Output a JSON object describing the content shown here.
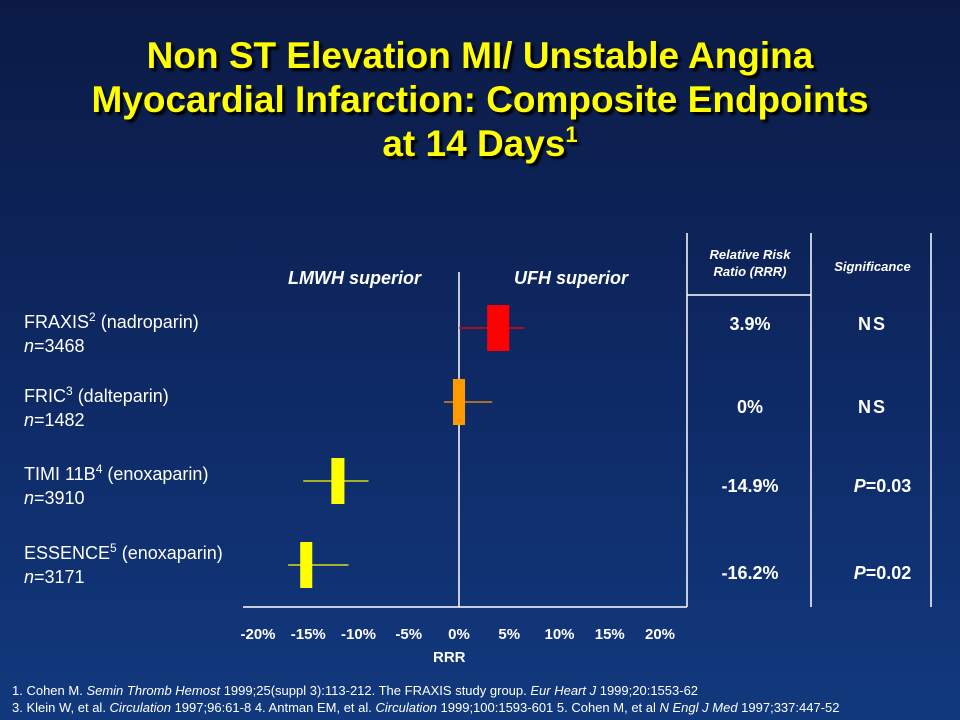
{
  "title": {
    "line1": "Non ST Elevation MI/ Unstable Angina",
    "line2": "Myocardial Infarction: Composite Endpoints",
    "line3": "at 14 Days",
    "line3_sup": "1"
  },
  "chart_data": {
    "type": "forest",
    "xlabel": "RRR",
    "xlim": [
      -20,
      20
    ],
    "xticks": [
      "-20%",
      "-15%",
      "-10%",
      "-5%",
      "0%",
      "5%",
      "10%",
      "15%",
      "20%"
    ],
    "left_label": "LMWH superior",
    "right_label": "UFH superior",
    "trials": [
      {
        "name": "FRAXIS",
        "ref": "2",
        "drug": " (nadroparin)",
        "n_prefix": "n",
        "n_value": "=3468",
        "rrr": 3.9,
        "box_low": 2.8,
        "box_high": 5.0,
        "line_low": 0.0,
        "line_high": 6.5,
        "color": "#ff0000",
        "rrr_label": "3.9%",
        "sig_prefix": "",
        "sig_value": "NS"
      },
      {
        "name": "FRIC",
        "ref": "3",
        "drug": " (dalteparin)",
        "n_prefix": "n",
        "n_value": "=1482",
        "rrr": 0,
        "box_low": -0.6,
        "box_high": 0.6,
        "line_low": -1.5,
        "line_high": 3.3,
        "color": "#ff9900",
        "rrr_label": "0%",
        "sig_prefix": "",
        "sig_value": "NS"
      },
      {
        "name": "TIMI 11B",
        "ref": "4",
        "drug": " (enoxaparin)",
        "n_prefix": "n",
        "n_value": "=3910",
        "rrr": -14.9,
        "box_low": -12.7,
        "box_high": -11.4,
        "line_low": -15.5,
        "line_high": -9.0,
        "color": "#ffff00",
        "rrr_label": "-14.9%",
        "sig_prefix": "P",
        "sig_value": "=0.03"
      },
      {
        "name": "ESSENCE",
        "ref": "5",
        "drug": " (enoxaparin)",
        "n_prefix": "n",
        "n_value": "=3171",
        "rrr": -16.2,
        "box_low": -15.8,
        "box_high": -14.6,
        "line_low": -17.0,
        "line_high": -11.0,
        "color": "#ffff00",
        "rrr_label": "-16.2%",
        "sig_prefix": "P",
        "sig_value": "=0.02"
      }
    ]
  },
  "table": {
    "col1_header_line1": "Relative Risk",
    "col1_header_line2": "Ratio (RRR)",
    "col2_header": "Significance"
  },
  "footnotes": {
    "line1": [
      {
        "t": "1. Cohen M. ",
        "i": false
      },
      {
        "t": "Semin Thromb Hemost",
        "i": true
      },
      {
        "t": " 1999;25(suppl 3):113-212. The FRAXIS study group. ",
        "i": false
      },
      {
        "t": "Eur Heart J",
        "i": true
      },
      {
        "t": " 1999;20:1553-62",
        "i": false
      }
    ],
    "line2": [
      {
        "t": "3. Klein W, et al. ",
        "i": false
      },
      {
        "t": "Circulation",
        "i": true
      },
      {
        "t": " 1997;96:61-8  4. Antman EM, et al. ",
        "i": false
      },
      {
        "t": "Circulation",
        "i": true
      },
      {
        "t": " 1999;100:1593-601  5. Cohen M, et al ",
        "i": false
      },
      {
        "t": "N Engl J Med",
        "i": true
      },
      {
        "t": " 1997;337:447-52",
        "i": false
      }
    ]
  }
}
